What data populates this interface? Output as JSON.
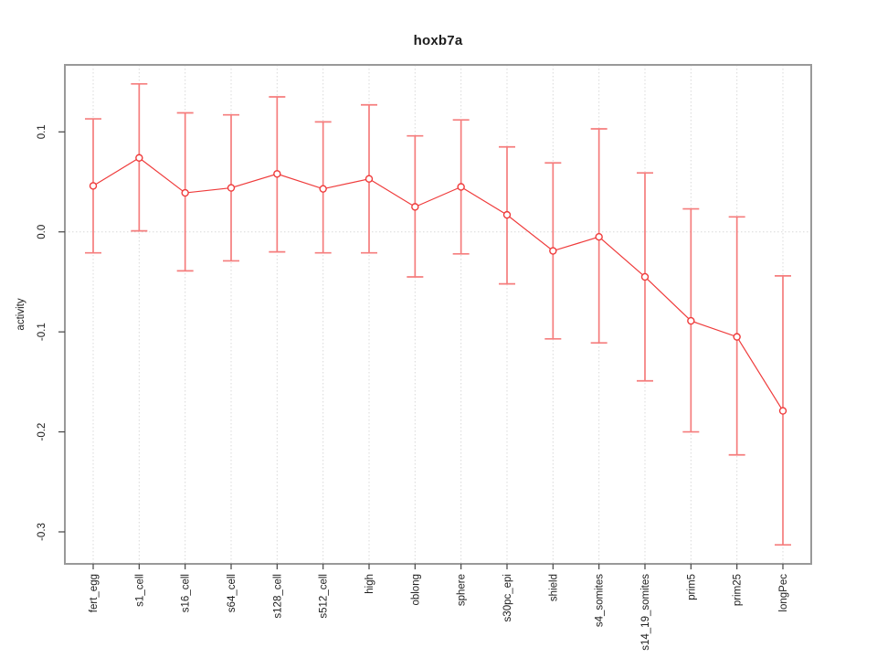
{
  "window": {
    "background": "#ffffff"
  },
  "chart_data": {
    "type": "line",
    "title": "hoxb7a",
    "xlabel": "",
    "ylabel": "activity",
    "legend": "none",
    "categories": [
      "fert_egg",
      "s1_cell",
      "s16_cell",
      "s64_cell",
      "s128_cell",
      "s512_cell",
      "high",
      "oblong",
      "sphere",
      "s30pc_epi",
      "shield",
      "s4_somites",
      "s14_19_somites",
      "prim5",
      "prim25",
      "longPec"
    ],
    "series": [
      {
        "name": "activity",
        "marker": "open-circle",
        "values": [
          0.046,
          0.074,
          0.039,
          0.044,
          0.058,
          0.043,
          0.053,
          0.025,
          0.045,
          0.017,
          -0.019,
          -0.005,
          -0.045,
          -0.089,
          -0.105,
          -0.179
        ],
        "error_upper": [
          0.113,
          0.148,
          0.119,
          0.117,
          0.135,
          0.11,
          0.127,
          0.096,
          0.112,
          0.085,
          0.069,
          0.103,
          0.059,
          0.023,
          0.015,
          -0.044
        ],
        "error_lower": [
          -0.021,
          0.001,
          -0.039,
          -0.029,
          -0.02,
          -0.021,
          -0.021,
          -0.045,
          -0.022,
          -0.052,
          -0.107,
          -0.111,
          -0.149,
          -0.2,
          -0.223,
          -0.313
        ]
      }
    ],
    "y_tick_labels": [
      "0.1",
      "0.0",
      "-0.1",
      "-0.2",
      "-0.3"
    ],
    "y_tick_values": [
      0.1,
      0.0,
      -0.1,
      -0.2,
      -0.3
    ],
    "ylim": [
      -0.332,
      0.167
    ],
    "grid": {
      "vertical_dotted": true,
      "horizontal_zero_dotted": true
    },
    "colors": {
      "line": "#ef3b3b",
      "error_bar": "#f57d7d",
      "marker_fill": "#ffffff",
      "grid": "#d9d9d9",
      "box_border": "#999999",
      "tick": "#444444",
      "text": "#1c1c1c"
    }
  }
}
